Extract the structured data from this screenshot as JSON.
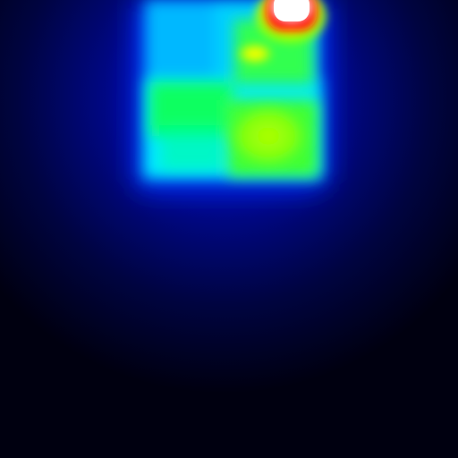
{
  "image": {
    "kind": "thermal-heatmap",
    "colormap": [
      "#000020",
      "#0000c0",
      "#00e0ff",
      "#00ff40",
      "#c0ff00",
      "#ffff00",
      "#ff0000",
      "#ffffff"
    ],
    "background": "#000018",
    "glow_color": "#0010a0",
    "regions": [
      {
        "name": "top-left-cyan-block",
        "color": "#00c8ff",
        "intensity": 0.45
      },
      {
        "name": "top-middle-cyan-block",
        "color": "#00d8ff",
        "intensity": 0.48
      },
      {
        "name": "middle-green-block",
        "color": "#40ff40",
        "intensity": 0.62
      },
      {
        "name": "yellow-hotspot",
        "color": "#ffff00",
        "intensity": 0.78
      },
      {
        "name": "peak-hotspot",
        "color": "#ff0000",
        "intensity": 1.0
      },
      {
        "name": "lower-left-green-block",
        "color": "#20ff80",
        "intensity": 0.55
      },
      {
        "name": "lower-right-lime-block",
        "color": "#a0ff00",
        "intensity": 0.7
      },
      {
        "name": "lower-band-cyan",
        "color": "#00f0ff",
        "intensity": 0.5
      }
    ]
  }
}
